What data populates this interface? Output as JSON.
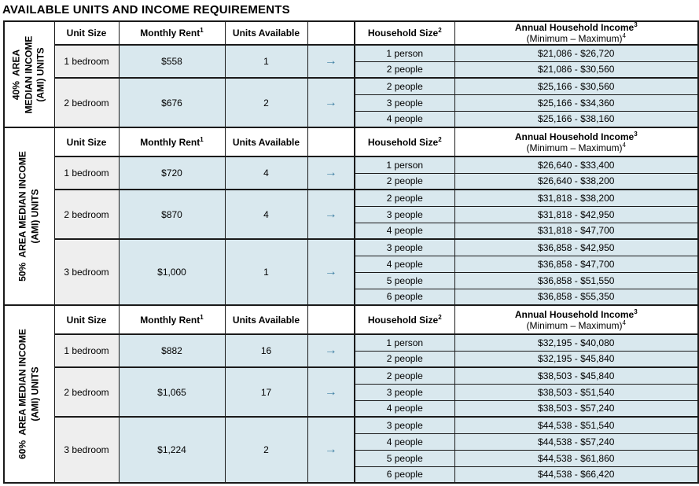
{
  "title": "AVAILABLE UNITS AND INCOME REQUIREMENTS",
  "arrow_icon": "→",
  "colors": {
    "cell_blue": "#d9e8ee",
    "cell_gray": "#eeeeee",
    "arrow_blue": "#3e7fa3",
    "border": "#1a1a1a"
  },
  "columns": {
    "unit_size": "Unit Size",
    "monthly_rent": {
      "text": "Monthly Rent",
      "sup": "1"
    },
    "units_available": "Units Available",
    "arrow_header": "",
    "household_size": {
      "text": "Household Size",
      "sup": "2"
    },
    "income_line1": {
      "text": "Annual Household Income",
      "sup": "3"
    },
    "income_line2": {
      "text": "(Minimum – Maximum)",
      "sup": "4"
    }
  },
  "sections": [
    {
      "id": "40-ami",
      "label_lines": [
        "40%  AREA",
        "MEDIAN INCOME",
        "(AMI) UNITS"
      ],
      "groups": [
        {
          "unit": "1 bedroom",
          "rent": "$558",
          "available": "1",
          "rows": [
            {
              "household": "1 person",
              "income": "$21,086 - $26,720"
            },
            {
              "household": "2 people",
              "income": "$21,086 - $30,560"
            }
          ]
        },
        {
          "unit": "2 bedroom",
          "rent": "$676",
          "available": "2",
          "rows": [
            {
              "household": "2 people",
              "income": "$25,166 - $30,560"
            },
            {
              "household": "3 people",
              "income": "$25,166 - $34,360"
            },
            {
              "household": "4 people",
              "income": "$25,166 - $38,160"
            }
          ]
        }
      ]
    },
    {
      "id": "50-ami",
      "label_lines": [
        "50%  AREA MEDIAN INCOME",
        "(AMI) UNITS"
      ],
      "groups": [
        {
          "unit": "1 bedroom",
          "rent": "$720",
          "available": "4",
          "rows": [
            {
              "household": "1 person",
              "income": "$26,640 - $33,400"
            },
            {
              "household": "2 people",
              "income": "$26,640 - $38,200"
            }
          ]
        },
        {
          "unit": "2 bedroom",
          "rent": "$870",
          "available": "4",
          "rows": [
            {
              "household": "2 people",
              "income": "$31,818 - $38,200"
            },
            {
              "household": "3 people",
              "income": "$31,818 - $42,950"
            },
            {
              "household": "4 people",
              "income": "$31,818 - $47,700"
            }
          ]
        },
        {
          "unit": "3 bedroom",
          "rent": "$1,000",
          "available": "1",
          "rows": [
            {
              "household": "3 people",
              "income": "$36,858 - $42,950"
            },
            {
              "household": "4 people",
              "income": "$36,858 - $47,700"
            },
            {
              "household": "5 people",
              "income": "$36,858 - $51,550"
            },
            {
              "household": "6 people",
              "income": "$36,858 - $55,350"
            }
          ]
        }
      ]
    },
    {
      "id": "60-ami",
      "label_lines": [
        "60%  AREA MEDIAN INCOME",
        "(AMI) UNITS"
      ],
      "groups": [
        {
          "unit": "1 bedroom",
          "rent": "$882",
          "available": "16",
          "rows": [
            {
              "household": "1 person",
              "income": "$32,195 - $40,080"
            },
            {
              "household": "2 people",
              "income": "$32,195 - $45,840"
            }
          ]
        },
        {
          "unit": "2 bedroom",
          "rent": "$1,065",
          "available": "17",
          "rows": [
            {
              "household": "2 people",
              "income": "$38,503 - $45,840"
            },
            {
              "household": "3 people",
              "income": "$38,503 - $51,540"
            },
            {
              "household": "4 people",
              "income": "$38,503 - $57,240"
            }
          ]
        },
        {
          "unit": "3 bedroom",
          "rent": "$1,224",
          "available": "2",
          "rows": [
            {
              "household": "3 people",
              "income": "$44,538 - $51,540"
            },
            {
              "household": "4 people",
              "income": "$44,538 - $57,240"
            },
            {
              "household": "5 people",
              "income": "$44,538 - $61,860"
            },
            {
              "household": "6 people",
              "income": "$44,538 - $66,420"
            }
          ]
        }
      ]
    }
  ]
}
